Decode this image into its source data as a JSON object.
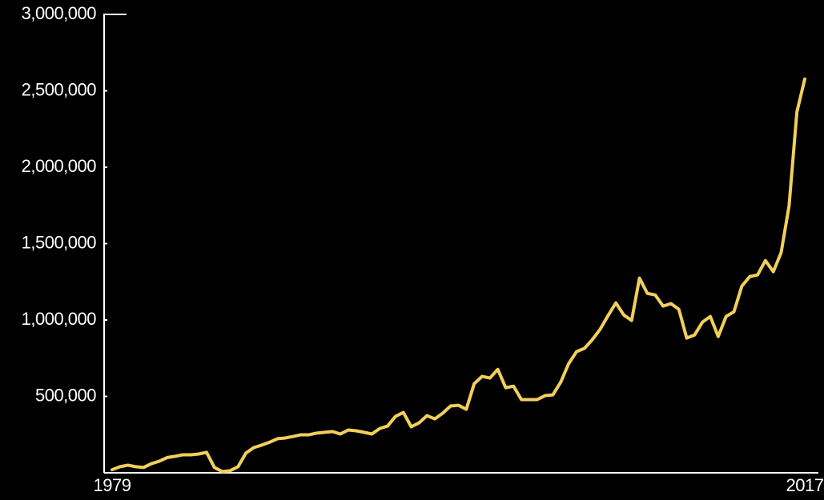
{
  "chart_data": {
    "type": "line",
    "categories": [
      "1979",
      null,
      null,
      null,
      null,
      null,
      null,
      null,
      null,
      null,
      null,
      null,
      null,
      null,
      null,
      null,
      null,
      null,
      null,
      null,
      null,
      null,
      null,
      null,
      null,
      null,
      null,
      null,
      null,
      null,
      null,
      null,
      null,
      null,
      null,
      null,
      null,
      null,
      null,
      null,
      null,
      null,
      null,
      null,
      null,
      null,
      null,
      null,
      null,
      null,
      null,
      null,
      null,
      null,
      null,
      null,
      null,
      null,
      null,
      null,
      null,
      null,
      null,
      null,
      null,
      null,
      null,
      null,
      null,
      null,
      null,
      null,
      null,
      null,
      null,
      null,
      null,
      null,
      null,
      null,
      null,
      null,
      null,
      null,
      null,
      null,
      null,
      null,
      "2017"
    ],
    "values": [
      20000,
      40000,
      50000,
      40000,
      35000,
      60000,
      76000,
      100000,
      108000,
      118000,
      118000,
      123000,
      134000,
      35000,
      8000,
      14000,
      40000,
      129000,
      165000,
      181000,
      200000,
      223000,
      228000,
      238000,
      249000,
      249000,
      260000,
      265000,
      270000,
      254000,
      280000,
      275000,
      265000,
      254000,
      290000,
      306000,
      369000,
      395000,
      301000,
      327000,
      374000,
      353000,
      390000,
      437000,
      442000,
      416000,
      583000,
      631000,
      620000,
      677000,
      557000,
      567000,
      479000,
      479000,
      479000,
      505000,
      510000,
      594000,
      714000,
      793000,
      814000,
      871000,
      939000,
      1028000,
      1112000,
      1033000,
      997000,
      1274000,
      1174000,
      1164000,
      1091000,
      1107000,
      1070000,
      882000,
      902000,
      986000,
      1023000,
      892000,
      1023000,
      1054000,
      1221000,
      1284000,
      1295000,
      1389000,
      1316000,
      1442000,
      1745000,
      2362000,
      2577000
    ],
    "color": "#f2cf5b",
    "ylim": [
      0,
      3000000
    ],
    "yticks": [
      {
        "value": 500000,
        "label": "500,000"
      },
      {
        "value": 1000000,
        "label": "1,000,000"
      },
      {
        "value": 1500000,
        "label": "1,500,000"
      },
      {
        "value": 2000000,
        "label": "2,000,000"
      },
      {
        "value": 2500000,
        "label": "2,500,000"
      },
      {
        "value": 3000000,
        "label": "3,000,000"
      }
    ],
    "grid": false
  }
}
